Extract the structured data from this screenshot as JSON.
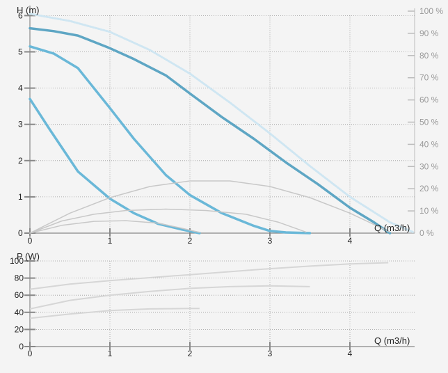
{
  "chart_data": [
    {
      "type": "line",
      "ylabel": "H (m)",
      "xlabel": "Q (m3/h)",
      "xlim": [
        0,
        4.8
      ],
      "ylim": [
        0,
        6
      ],
      "x_ticks": [
        "0",
        "1",
        "2",
        "3",
        "4"
      ],
      "y_ticks": [
        "0",
        "1",
        "2",
        "3",
        "4",
        "5",
        "6"
      ],
      "y2_ticks": [
        "0 %",
        "10 %",
        "20 %",
        "30 %",
        "40 %",
        "50 %",
        "60 %",
        "70 %",
        "80 %",
        "90 %",
        "100 %"
      ],
      "y2lim": [
        0,
        100
      ],
      "grid": true,
      "colors": {
        "head_curve": "#6ab8d8",
        "head_curve_dark": "#5ea6c4",
        "max_envelope": "#cfe6f2",
        "efficiency": "#c8c8c8",
        "axis": "#888888",
        "grid": "#9a9a9a"
      },
      "series": [
        {
          "kind": "envelope",
          "x": [
            0,
            0.5,
            1,
            1.5,
            2,
            2.5,
            3,
            3.5,
            4,
            4.5,
            4.8
          ],
          "y": [
            6.05,
            5.85,
            5.55,
            5.05,
            4.4,
            3.6,
            2.75,
            1.85,
            1.0,
            0.3,
            0.02
          ]
        },
        {
          "kind": "head",
          "x": [
            0,
            0.3,
            0.6,
            1,
            1.3,
            1.7,
            2,
            2.4,
            2.8,
            3.2,
            3.6,
            4,
            4.3,
            4.5
          ],
          "y": [
            5.65,
            5.57,
            5.45,
            5.1,
            4.8,
            4.35,
            3.85,
            3.2,
            2.6,
            1.95,
            1.35,
            0.7,
            0.3,
            0.0
          ]
        },
        {
          "kind": "head",
          "x": [
            0,
            0.3,
            0.6,
            1,
            1.3,
            1.7,
            2,
            2.4,
            2.8,
            3.0,
            3.2,
            3.5
          ],
          "y": [
            5.15,
            4.95,
            4.55,
            3.45,
            2.6,
            1.6,
            1.05,
            0.55,
            0.2,
            0.06,
            0.02,
            0.0
          ]
        },
        {
          "kind": "head",
          "x": [
            0,
            0.25,
            0.6,
            1,
            1.3,
            1.6,
            1.9,
            2.12
          ],
          "y": [
            3.7,
            2.85,
            1.7,
            0.95,
            0.55,
            0.26,
            0.1,
            0.0
          ]
        },
        {
          "kind": "efficiency",
          "x": [
            0,
            0.5,
            1,
            1.5,
            2,
            2.5,
            3,
            3.5,
            4,
            4.5
          ],
          "y": [
            0,
            9,
            16,
            21,
            23.5,
            23.5,
            21,
            16,
            9,
            0.5
          ]
        },
        {
          "kind": "efficiency",
          "x": [
            0,
            0.4,
            0.8,
            1.2,
            1.7,
            2.2,
            2.7,
            3.1,
            3.45
          ],
          "y": [
            0,
            5.5,
            8.5,
            10.2,
            10.8,
            10.2,
            8.5,
            5,
            0.5
          ]
        },
        {
          "kind": "efficiency",
          "x": [
            0,
            0.4,
            0.8,
            1.2,
            1.6,
            1.9,
            2.12
          ],
          "y": [
            0,
            3.5,
            5.3,
            5.6,
            4.5,
            2.2,
            0.3
          ]
        }
      ]
    },
    {
      "type": "line",
      "ylabel": "P (W)",
      "xlabel": "Q (m3/h)",
      "xlim": [
        0,
        4.8
      ],
      "ylim": [
        0,
        100
      ],
      "x_ticks": [
        "0",
        "1",
        "2",
        "3",
        "4"
      ],
      "y_ticks": [
        "0",
        "20",
        "40",
        "60",
        "80",
        "100"
      ],
      "grid": true,
      "colors": {
        "power": "#d6d6d6"
      },
      "series": [
        {
          "x": [
            0,
            0.5,
            1,
            1.5,
            2,
            2.5,
            3,
            3.5,
            4,
            4.48
          ],
          "y": [
            67,
            73,
            77,
            80.5,
            84,
            87.5,
            91,
            94,
            96.5,
            98
          ]
        },
        {
          "x": [
            0,
            0.5,
            1,
            1.5,
            2,
            2.5,
            3,
            3.5
          ],
          "y": [
            44,
            54,
            60,
            64.5,
            68,
            70,
            71,
            70
          ]
        },
        {
          "x": [
            0,
            0.5,
            1,
            1.5,
            2,
            2.12
          ],
          "y": [
            33,
            38,
            42,
            44,
            44.5,
            44.5
          ]
        }
      ]
    }
  ]
}
